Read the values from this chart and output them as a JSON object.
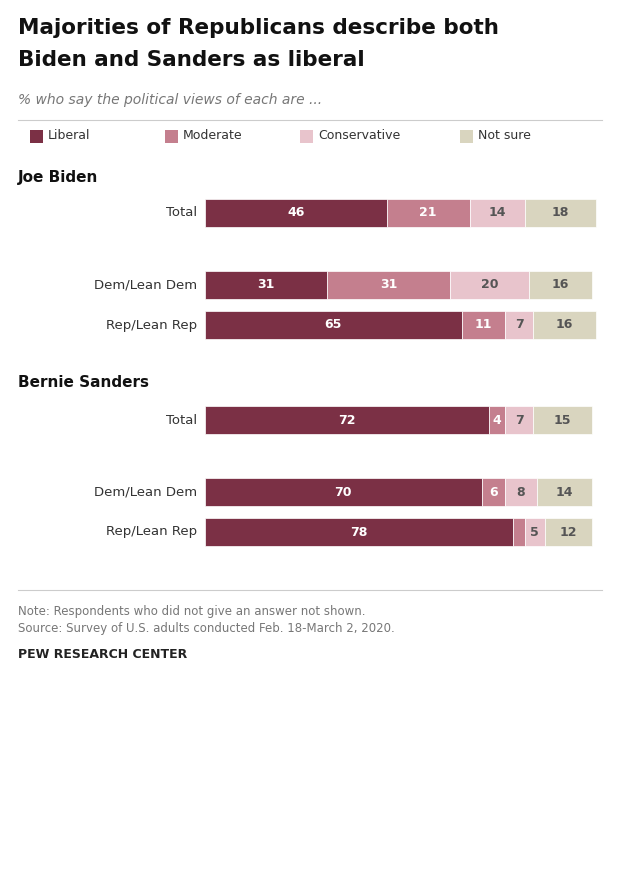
{
  "title_line1": "Majorities of Republicans describe both",
  "title_line2": "Biden and Sanders as liberal",
  "subtitle": "% who say the political views of each are ...",
  "legend_labels": [
    "Liberal",
    "Moderate",
    "Conservative",
    "Not sure"
  ],
  "colors": {
    "liberal": "#7b3045",
    "moderate": "#c47f8e",
    "conservative": "#e8c4cc",
    "not_sure": "#d9d5bf"
  },
  "data": [
    {
      "label": "Total",
      "section": "Joe Biden",
      "liberal": 46,
      "moderate": 21,
      "conservative": 14,
      "not_sure": 18
    },
    {
      "label": "Dem/Lean Dem",
      "section": "Joe Biden",
      "liberal": 31,
      "moderate": 31,
      "conservative": 20,
      "not_sure": 16
    },
    {
      "label": "Rep/Lean Rep",
      "section": "Joe Biden",
      "liberal": 65,
      "moderate": 11,
      "conservative": 7,
      "not_sure": 16
    },
    {
      "label": "Total",
      "section": "Bernie Sanders",
      "liberal": 72,
      "moderate": 4,
      "conservative": 7,
      "not_sure": 15
    },
    {
      "label": "Dem/Lean Dem",
      "section": "Bernie Sanders",
      "liberal": 70,
      "moderate": 6,
      "conservative": 8,
      "not_sure": 14
    },
    {
      "label": "Rep/Lean Rep",
      "section": "Bernie Sanders",
      "liberal": 78,
      "moderate": 3,
      "conservative": 5,
      "not_sure": 12
    }
  ],
  "note_line1": "Note: Respondents who did not give an answer not shown.",
  "note_line2": "Source: Survey of U.S. adults conducted Feb. 18-March 2, 2020.",
  "footer": "PEW RESEARCH CENTER",
  "background_color": "#ffffff"
}
